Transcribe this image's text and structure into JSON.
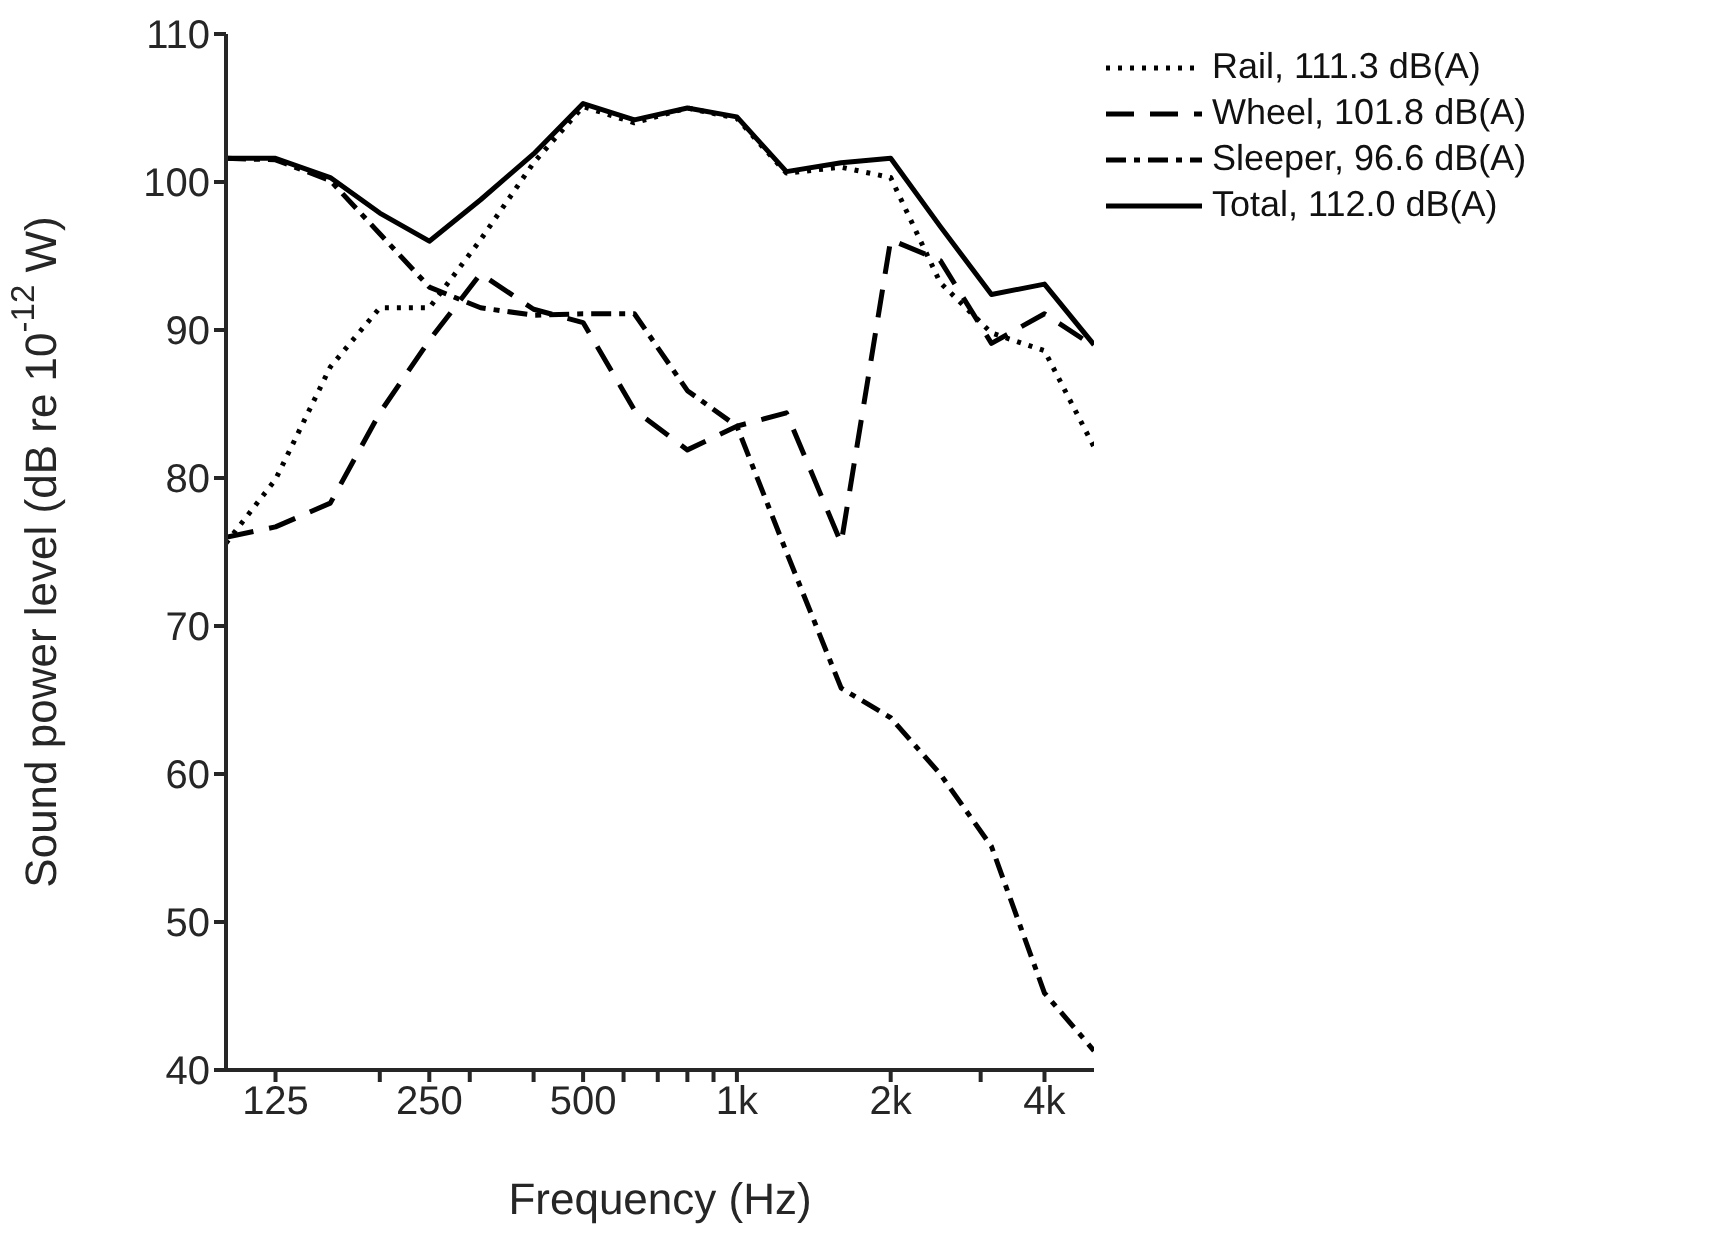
{
  "chart_data": {
    "type": "line",
    "xlabel": "Frequency (Hz)",
    "ylabel": "Sound power level (dB re 10$^{-12}$ W)",
    "x": [
      100,
      125,
      160,
      200,
      250,
      315,
      400,
      500,
      630,
      800,
      1000,
      1250,
      1600,
      2000,
      2500,
      3150,
      4000,
      5000
    ],
    "log": "x",
    "xlim": [
      100,
      5000
    ],
    "ylim": [
      40,
      110
    ],
    "yticks": [
      40,
      50,
      60,
      70,
      80,
      90,
      100,
      110
    ],
    "xticks": [
      {
        "value": 125,
        "label": "125"
      },
      {
        "value": 200,
        "label": null
      },
      {
        "value": 250,
        "label": "250"
      },
      {
        "value": 300,
        "label": null
      },
      {
        "value": 400,
        "label": null
      },
      {
        "value": 500,
        "label": "500"
      },
      {
        "value": 600,
        "label": null
      },
      {
        "value": 700,
        "label": null
      },
      {
        "value": 800,
        "label": null
      },
      {
        "value": 900,
        "label": null
      },
      {
        "value": 1000,
        "label": "1k"
      },
      {
        "value": 2000,
        "label": "2k"
      },
      {
        "value": 3000,
        "label": null
      },
      {
        "value": 4000,
        "label": "4k"
      }
    ],
    "grid": false,
    "legend": "top right",
    "marker": "none",
    "series": [
      {
        "name": "Rail, 111.3 dB(A)",
        "color": "#000000",
        "line_style": "dotted",
        "values": [
          75.6,
          79.9,
          87.5,
          91.5,
          91.5,
          96.1,
          101.3,
          105.1,
          104.0,
          105.0,
          104.3,
          100.6,
          101.0,
          100.3,
          93.2,
          89.8,
          88.6,
          82.1
        ]
      },
      {
        "name": "Wheel, 101.8 dB(A)",
        "color": "#000000",
        "line_style": "dashed",
        "values": [
          76.0,
          76.7,
          78.3,
          84.4,
          89.3,
          93.8,
          91.4,
          90.5,
          84.6,
          81.9,
          83.5,
          84.4,
          75.6,
          96.1,
          94.7,
          89.1,
          91.1,
          88.9
        ]
      },
      {
        "name": "Sleeper, 96.6 dB(A)",
        "color": "#000000",
        "line_style": "dashdot",
        "values": [
          101.6,
          101.5,
          100.1,
          96.5,
          92.9,
          91.5,
          91.0,
          91.1,
          91.1,
          85.9,
          83.5,
          75.0,
          65.8,
          63.8,
          60.0,
          55.1,
          45.2,
          41.3
        ]
      },
      {
        "name": "Total, 112.0 dB(A)",
        "color": "#000000",
        "line_style": "solid",
        "values": [
          101.6,
          101.6,
          100.3,
          97.9,
          96.0,
          98.8,
          101.9,
          105.3,
          104.2,
          105.0,
          104.4,
          100.7,
          101.3,
          101.6,
          97.0,
          92.4,
          93.1,
          89.0
        ]
      }
    ]
  }
}
